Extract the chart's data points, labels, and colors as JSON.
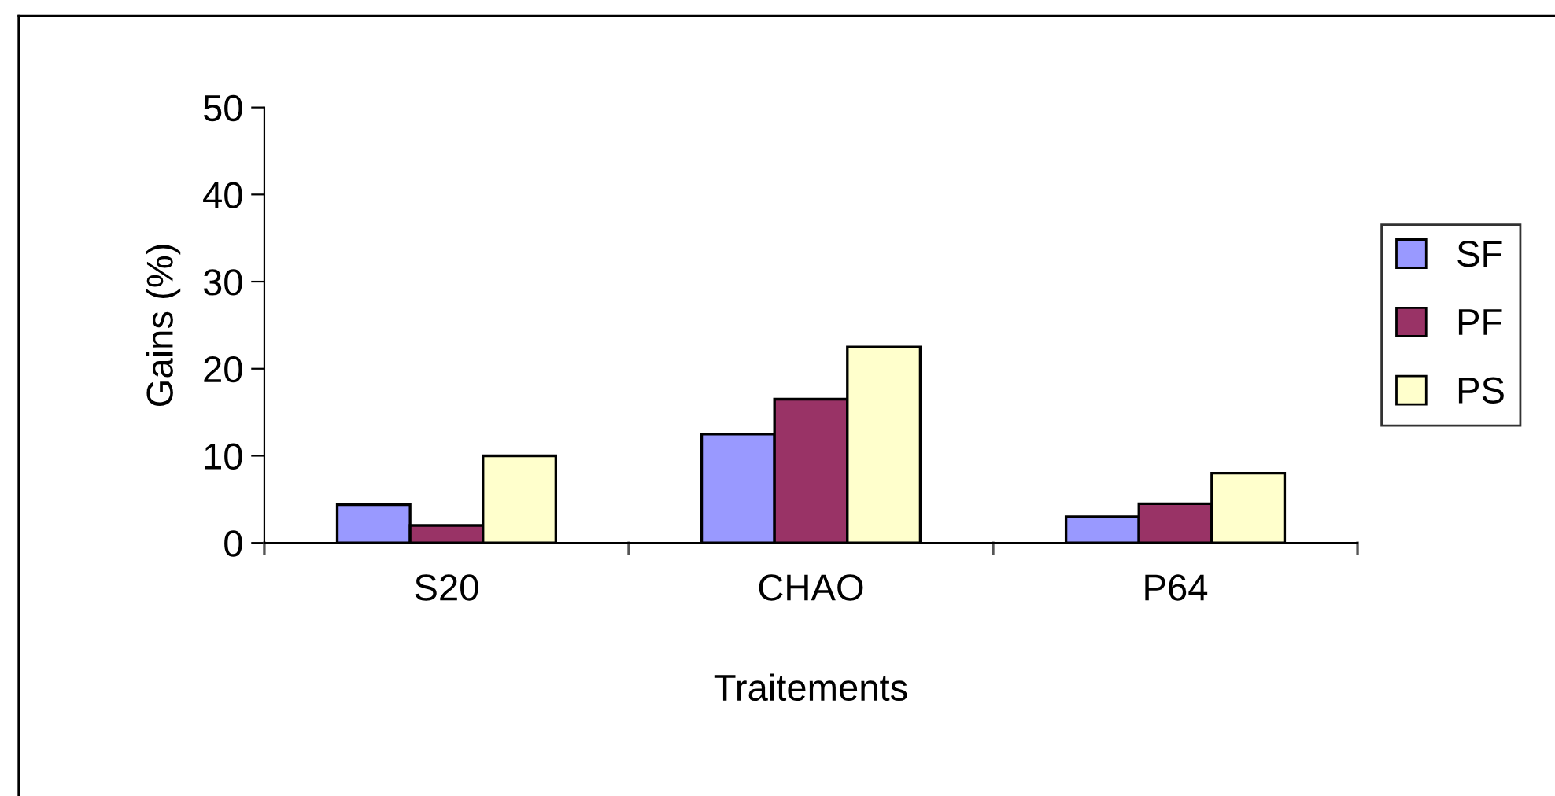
{
  "chart_data": {
    "type": "bar",
    "xlabel": "Traitements",
    "ylabel": "Gains (%)",
    "categories": [
      "S20",
      "CHAO",
      "P64"
    ],
    "series": [
      {
        "name": "SF",
        "color": "#9999ff",
        "values": [
          4.4,
          12.5,
          3.0
        ]
      },
      {
        "name": "PF",
        "color": "#993366",
        "values": [
          2.0,
          16.5,
          4.5
        ]
      },
      {
        "name": "PS",
        "color": "#ffffcc",
        "values": [
          10.0,
          22.5,
          8.0
        ]
      }
    ],
    "ylim": [
      0,
      50
    ],
    "yticks": [
      0,
      10,
      20,
      30,
      40,
      50
    ],
    "grid": false,
    "legend": "right"
  }
}
